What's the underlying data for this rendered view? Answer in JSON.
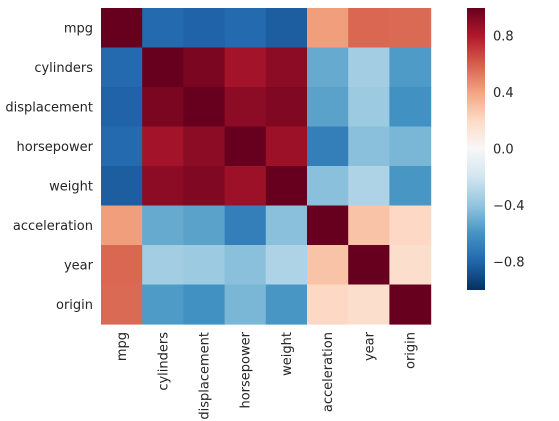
{
  "chart_data": {
    "type": "heatmap",
    "title": "",
    "xlabel": "",
    "ylabel": "",
    "categories": [
      "mpg",
      "cylinders",
      "displacement",
      "horsepower",
      "weight",
      "acceleration",
      "year",
      "origin"
    ],
    "matrix": [
      [
        1.0,
        -0.78,
        -0.81,
        -0.78,
        -0.83,
        0.42,
        0.58,
        0.57
      ],
      [
        -0.78,
        1.0,
        0.95,
        0.84,
        0.9,
        -0.51,
        -0.35,
        -0.57
      ],
      [
        -0.81,
        0.95,
        1.0,
        0.9,
        0.93,
        -0.54,
        -0.37,
        -0.61
      ],
      [
        -0.78,
        0.84,
        0.9,
        1.0,
        0.86,
        -0.69,
        -0.42,
        -0.46
      ],
      [
        -0.83,
        0.9,
        0.93,
        0.86,
        1.0,
        -0.42,
        -0.31,
        -0.59
      ],
      [
        0.42,
        -0.51,
        -0.54,
        -0.69,
        -0.42,
        1.0,
        0.29,
        0.21
      ],
      [
        0.58,
        -0.35,
        -0.37,
        -0.42,
        -0.31,
        0.29,
        1.0,
        0.18
      ],
      [
        0.57,
        -0.57,
        -0.61,
        -0.46,
        -0.59,
        0.21,
        0.18,
        1.0
      ]
    ],
    "colorbar": {
      "range": [
        -1.0,
        1.0
      ],
      "ticks": [
        -0.8,
        -0.4,
        0.0,
        0.4,
        0.8
      ],
      "tick_labels": [
        "−0.8",
        "−0.4",
        "0.0",
        "0.4",
        "0.8"
      ],
      "colormap": "RdBu_r"
    },
    "grid": false,
    "legend": "colorbar-right"
  }
}
